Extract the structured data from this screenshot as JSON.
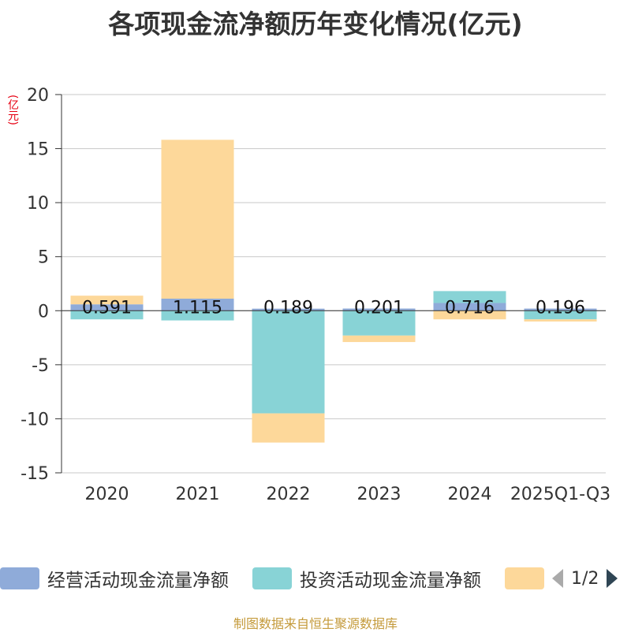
{
  "chart_data": {
    "type": "bar",
    "stacked": true,
    "title": "各项现金流净额历年变化情况(亿元)",
    "ylabel": "(亿元)",
    "ylim": [
      -15,
      20
    ],
    "yticks": [
      20,
      15,
      10,
      5,
      0,
      -5,
      -10,
      -15
    ],
    "categories": [
      "2020",
      "2021",
      "2022",
      "2023",
      "2024",
      "2025Q1-Q3"
    ],
    "series": [
      {
        "name": "经营活动现金流量净额",
        "color": "#8fabd9",
        "values": [
          0.591,
          1.115,
          0.189,
          0.201,
          0.716,
          0.196
        ]
      },
      {
        "name": "投资活动现金流量净额",
        "color": "#88d3d6",
        "values": [
          -0.8,
          -0.9,
          -9.5,
          -2.3,
          1.1,
          -0.8
        ]
      },
      {
        "name": "",
        "color": "#fdd89a",
        "values": [
          0.8,
          14.7,
          -2.7,
          -0.6,
          -0.8,
          -0.2
        ]
      }
    ],
    "data_labels": [
      "0.591",
      "1.115",
      "0.189",
      "0.201",
      "0.716",
      "0.196"
    ]
  },
  "legend": {
    "items": [
      {
        "label": "经营活动现金流量净额",
        "color": "#8fabd9"
      },
      {
        "label": "投资活动现金流量净额",
        "color": "#88d3d6"
      },
      {
        "label": "",
        "color": "#fdd89a"
      }
    ],
    "page": "1/2"
  },
  "source": "制图数据来自恒生聚源数据库"
}
